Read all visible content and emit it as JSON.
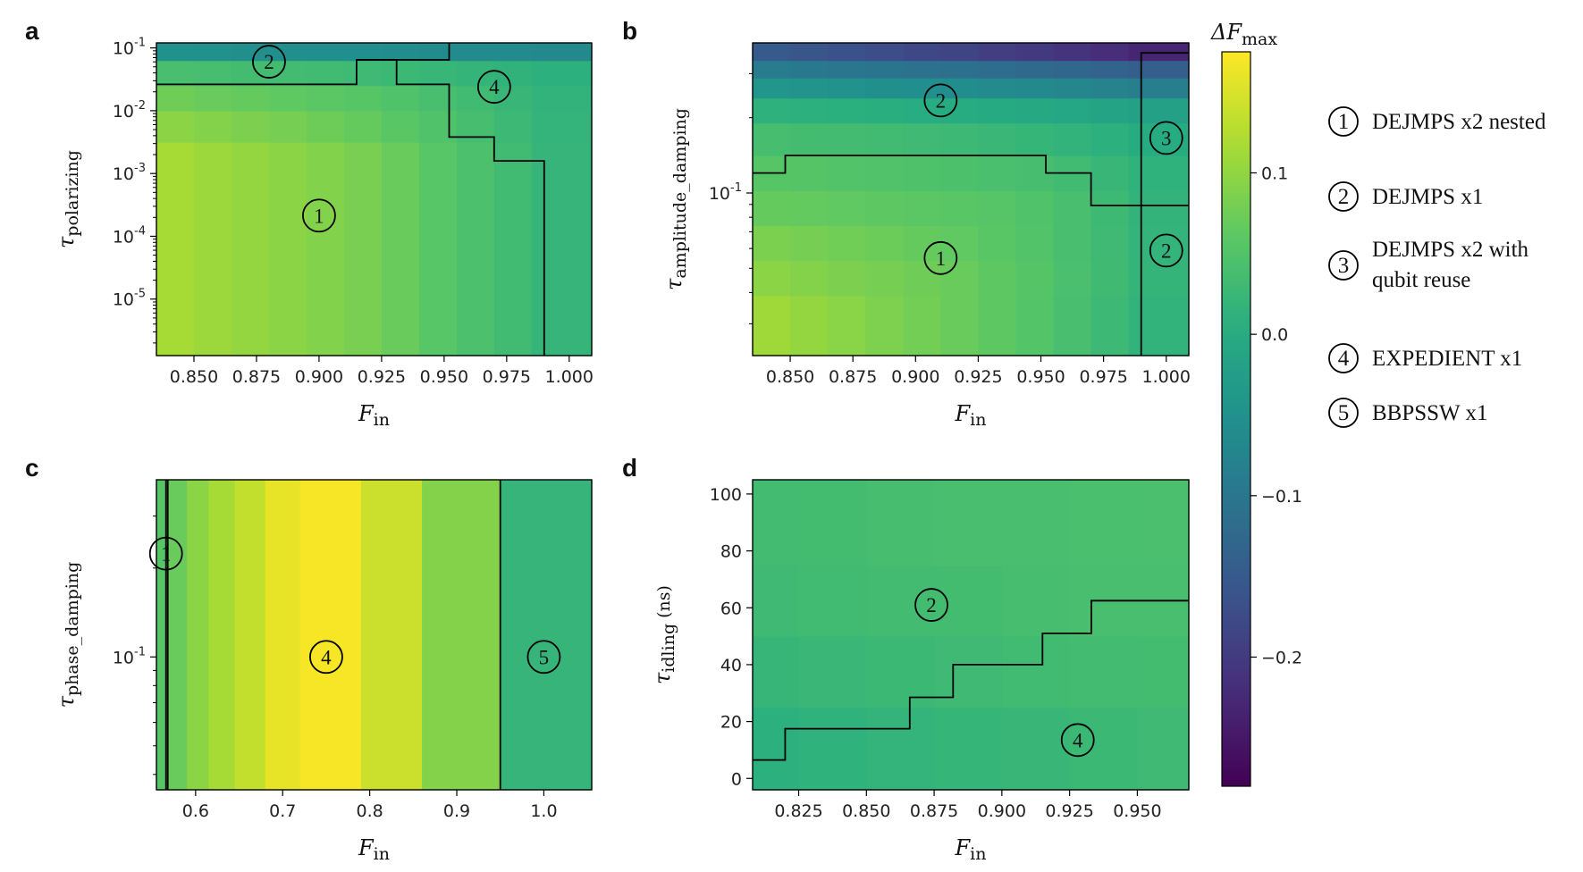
{
  "figure": {
    "colorbar": {
      "label_main": "ΔF",
      "label_sub": "max",
      "ticks": [
        {
          "v": 0.1,
          "label": "0.1"
        },
        {
          "v": 0.0,
          "label": "0.0"
        },
        {
          "v": -0.1,
          "label": "−0.1"
        },
        {
          "v": -0.2,
          "label": "−0.2"
        }
      ],
      "range": [
        -0.28,
        0.175
      ]
    },
    "legend": [
      {
        "num": "1",
        "lines": [
          "DEJMPS x2 nested"
        ]
      },
      {
        "num": "2",
        "lines": [
          "DEJMPS x1"
        ]
      },
      {
        "num": "3",
        "lines": [
          "DEJMPS x2 with",
          "qubit reuse"
        ]
      },
      {
        "num": "4",
        "lines": [
          "EXPEDIENT x1"
        ]
      },
      {
        "num": "5",
        "lines": [
          "BBPSSW x1"
        ]
      }
    ]
  },
  "chart_data": [
    {
      "panel": "a",
      "type": "heatmap",
      "xlabel_main": "F",
      "xlabel_sub": "in",
      "ylabel_main": "τ",
      "ylabel_sub": "polarizing",
      "yscale": "log",
      "xlim": [
        0.835,
        1.009
      ],
      "ylim_log": [
        -5.9,
        -0.92
      ],
      "xticks": [
        {
          "v": 0.85,
          "label": "0.850"
        },
        {
          "v": 0.875,
          "label": "0.875"
        },
        {
          "v": 0.9,
          "label": "0.900"
        },
        {
          "v": 0.925,
          "label": "0.925"
        },
        {
          "v": 0.95,
          "label": "0.950"
        },
        {
          "v": 0.975,
          "label": "0.975"
        },
        {
          "v": 1.0,
          "label": "1.000"
        }
      ],
      "yticks": [
        {
          "e": -1,
          "label": "-1"
        },
        {
          "e": -2,
          "label": "-2"
        },
        {
          "e": -3,
          "label": "-3"
        },
        {
          "e": -4,
          "label": "-4"
        },
        {
          "e": -5,
          "label": "-5"
        }
      ],
      "ytick_base": "10",
      "x_edges": [
        0.835,
        0.85,
        0.865,
        0.88,
        0.895,
        0.91,
        0.925,
        0.94,
        0.955,
        0.97,
        0.985,
        1.009
      ],
      "y_edges_log": [
        -5.9,
        -2.5,
        -2.0,
        -1.6,
        -1.2,
        -0.92
      ],
      "values": [
        [
          0.115,
          0.108,
          0.102,
          0.095,
          0.089,
          0.082,
          0.07,
          0.056,
          0.044,
          0.032,
          0.02
        ],
        [
          0.095,
          0.09,
          0.085,
          0.08,
          0.074,
          0.068,
          0.058,
          0.048,
          0.038,
          0.028,
          0.018
        ],
        [
          0.075,
          0.071,
          0.067,
          0.063,
          0.059,
          0.055,
          0.048,
          0.04,
          0.032,
          0.024,
          0.016
        ],
        [
          0.04,
          0.038,
          0.036,
          0.034,
          0.032,
          0.03,
          0.027,
          0.023,
          0.019,
          0.015,
          0.01
        ],
        [
          -0.05,
          -0.05,
          -0.052,
          -0.052,
          -0.054,
          -0.054,
          -0.058,
          -0.06,
          -0.062,
          -0.062,
          -0.065
        ]
      ],
      "boundaries": [
        {
          "x": [
            0.835,
            0.915,
            0.915,
            0.931,
            0.931,
            0.952,
            0.952,
            0.97,
            0.97,
            0.99,
            0.99
          ],
          "y_log": [
            -1.58,
            -1.58,
            -1.19,
            -1.19,
            -1.58,
            -1.58,
            -2.42,
            -2.42,
            -2.8,
            -2.8,
            -5.9
          ]
        },
        {
          "x": [
            0.915,
            0.952,
            0.952
          ],
          "y_log": [
            -1.19,
            -1.19,
            -0.92
          ]
        }
      ],
      "regions": [
        {
          "num": "2",
          "x": 0.88,
          "y_log": -1.22
        },
        {
          "num": "4",
          "x": 0.97,
          "y_log": -1.62
        },
        {
          "num": "1",
          "x": 0.9,
          "y_log": -3.67
        }
      ]
    },
    {
      "panel": "b",
      "type": "heatmap",
      "xlabel_main": "F",
      "xlabel_sub": "in",
      "ylabel_main": "τ",
      "ylabel_sub": "amplitude_damping",
      "yscale": "log",
      "xlim": [
        0.835,
        1.009
      ],
      "ylim_log": [
        -1.65,
        -0.4
      ],
      "xticks": [
        {
          "v": 0.85,
          "label": "0.850"
        },
        {
          "v": 0.875,
          "label": "0.875"
        },
        {
          "v": 0.9,
          "label": "0.900"
        },
        {
          "v": 0.925,
          "label": "0.925"
        },
        {
          "v": 0.95,
          "label": "0.950"
        },
        {
          "v": 0.975,
          "label": "0.975"
        },
        {
          "v": 1.0,
          "label": "1.000"
        }
      ],
      "yticks": [
        {
          "e": -1,
          "label": "-1"
        }
      ],
      "ytick_base": "10",
      "x_edges": [
        0.835,
        0.85,
        0.865,
        0.88,
        0.895,
        0.91,
        0.925,
        0.94,
        0.955,
        0.97,
        0.985,
        1.009
      ],
      "y_edges_log": [
        -1.65,
        -1.41,
        -1.27,
        -1.13,
        -0.99,
        -0.85,
        -0.72,
        -0.62,
        -0.54,
        -0.47,
        -0.4
      ],
      "values": [
        [
          0.11,
          0.102,
          0.094,
          0.086,
          0.078,
          0.07,
          0.062,
          0.052,
          0.04,
          0.028,
          0.016
        ],
        [
          0.095,
          0.09,
          0.085,
          0.08,
          0.075,
          0.07,
          0.062,
          0.053,
          0.043,
          0.031,
          0.019
        ],
        [
          0.084,
          0.08,
          0.076,
          0.072,
          0.068,
          0.064,
          0.058,
          0.05,
          0.041,
          0.03,
          0.018
        ],
        [
          0.068,
          0.066,
          0.064,
          0.062,
          0.06,
          0.058,
          0.054,
          0.048,
          0.04,
          0.029,
          0.017
        ],
        [
          0.055,
          0.053,
          0.051,
          0.049,
          0.047,
          0.045,
          0.042,
          0.038,
          0.032,
          0.024,
          0.014
        ],
        [
          0.038,
          0.036,
          0.034,
          0.032,
          0.03,
          0.028,
          0.025,
          0.021,
          0.016,
          0.01,
          0.003
        ],
        [
          0.012,
          0.01,
          0.008,
          0.006,
          0.004,
          0.002,
          -0.001,
          -0.005,
          -0.01,
          -0.016,
          -0.022
        ],
        [
          -0.04,
          -0.044,
          -0.048,
          -0.052,
          -0.055,
          -0.058,
          -0.062,
          -0.066,
          -0.071,
          -0.077,
          -0.084
        ],
        [
          -0.09,
          -0.095,
          -0.1,
          -0.104,
          -0.108,
          -0.112,
          -0.117,
          -0.122,
          -0.128,
          -0.134,
          -0.141
        ],
        [
          -0.15,
          -0.158,
          -0.166,
          -0.173,
          -0.18,
          -0.187,
          -0.195,
          -0.203,
          -0.212,
          -0.222,
          -0.233
        ]
      ],
      "boundaries": [
        {
          "x": [
            0.835,
            0.848,
            0.848,
            0.952,
            0.952,
            0.97,
            0.97,
            1.009
          ],
          "y_log": [
            -0.92,
            -0.92,
            -0.85,
            -0.85,
            -0.92,
            -0.92,
            -1.05,
            -1.05
          ]
        },
        {
          "x": [
            0.99,
            0.99,
            1.009
          ],
          "y_log": [
            -1.65,
            -0.44,
            -0.44
          ]
        }
      ],
      "regions": [
        {
          "num": "2",
          "x": 0.91,
          "y_log": -0.63
        },
        {
          "num": "3",
          "x": 1.0,
          "y_log": -0.78
        },
        {
          "num": "1",
          "x": 0.91,
          "y_log": -1.26
        },
        {
          "num": "2",
          "x": 1.0,
          "y_log": -1.23
        }
      ]
    },
    {
      "panel": "c",
      "type": "heatmap",
      "xlabel_main": "F",
      "xlabel_sub": "in",
      "ylabel_main": "τ",
      "ylabel_sub": "phase_damping",
      "yscale": "log",
      "xlim": [
        0.555,
        1.055
      ],
      "ylim_log": [
        -1.45,
        -0.4
      ],
      "xticks": [
        {
          "v": 0.6,
          "label": "0.6"
        },
        {
          "v": 0.7,
          "label": "0.7"
        },
        {
          "v": 0.8,
          "label": "0.8"
        },
        {
          "v": 0.9,
          "label": "0.9"
        },
        {
          "v": 1.0,
          "label": "1.0"
        }
      ],
      "yticks": [
        {
          "e": -1,
          "label": "-1"
        }
      ],
      "ytick_base": "10",
      "x_edges": [
        0.555,
        0.565,
        0.59,
        0.615,
        0.645,
        0.68,
        0.72,
        0.79,
        0.86,
        0.95,
        1.055
      ],
      "y_edges_log": [
        -1.45,
        -0.4
      ],
      "values": [
        [
          0.055,
          0.07,
          0.095,
          0.115,
          0.135,
          0.16,
          0.17,
          0.14,
          0.09,
          0.02
        ]
      ],
      "boundaries": [
        {
          "x": [
            0.566,
            0.566
          ],
          "y_log": [
            -1.45,
            -0.4
          ]
        },
        {
          "x": [
            0.568,
            0.568
          ],
          "y_log": [
            -1.45,
            -0.4
          ]
        },
        {
          "x": [
            0.95,
            0.95
          ],
          "y_log": [
            -1.45,
            -0.4
          ]
        }
      ],
      "regions": [
        {
          "num": "1",
          "x": 0.566,
          "y_log": -0.65
        },
        {
          "num": "4",
          "x": 0.75,
          "y_log": -1.0
        },
        {
          "num": "5",
          "x": 1.0,
          "y_log": -1.0
        }
      ]
    },
    {
      "panel": "d",
      "type": "heatmap",
      "xlabel_main": "F",
      "xlabel_sub": "in",
      "ylabel_main": "τ",
      "ylabel_sub": "idling",
      "ylabel_unit": " (ns)",
      "yscale": "linear",
      "xlim": [
        0.808,
        0.969
      ],
      "ylim": [
        -4,
        105
      ],
      "xticks": [
        {
          "v": 0.825,
          "label": "0.825"
        },
        {
          "v": 0.85,
          "label": "0.850"
        },
        {
          "v": 0.875,
          "label": "0.875"
        },
        {
          "v": 0.9,
          "label": "0.900"
        },
        {
          "v": 0.925,
          "label": "0.925"
        },
        {
          "v": 0.95,
          "label": "0.950"
        }
      ],
      "yticks": [
        {
          "v": 0,
          "label": "0"
        },
        {
          "v": 20,
          "label": "20"
        },
        {
          "v": 40,
          "label": "40"
        },
        {
          "v": 60,
          "label": "60"
        },
        {
          "v": 80,
          "label": "80"
        },
        {
          "v": 100,
          "label": "100"
        }
      ],
      "x_edges": [
        0.808,
        0.825,
        0.85,
        0.875,
        0.9,
        0.925,
        0.95,
        0.969
      ],
      "y_edges": [
        -4,
        25,
        50,
        75,
        105
      ],
      "values": [
        [
          0.01,
          0.014,
          0.018,
          0.021,
          0.024,
          0.027,
          0.03
        ],
        [
          0.022,
          0.025,
          0.027,
          0.03,
          0.032,
          0.034,
          0.036
        ],
        [
          0.03,
          0.032,
          0.034,
          0.036,
          0.038,
          0.04,
          0.041
        ],
        [
          0.034,
          0.036,
          0.038,
          0.04,
          0.041,
          0.042,
          0.043
        ]
      ],
      "boundaries": [
        {
          "x": [
            0.808,
            0.82,
            0.82,
            0.866,
            0.866,
            0.882,
            0.882,
            0.915,
            0.915,
            0.933,
            0.933,
            0.969
          ],
          "y": [
            6.5,
            6.5,
            17.5,
            17.5,
            28.5,
            28.5,
            40,
            40,
            51,
            51,
            62.5,
            62.5
          ]
        }
      ],
      "regions": [
        {
          "num": "2",
          "x": 0.874,
          "y": 61
        },
        {
          "num": "4",
          "x": 0.928,
          "y": 13.5
        }
      ]
    }
  ]
}
